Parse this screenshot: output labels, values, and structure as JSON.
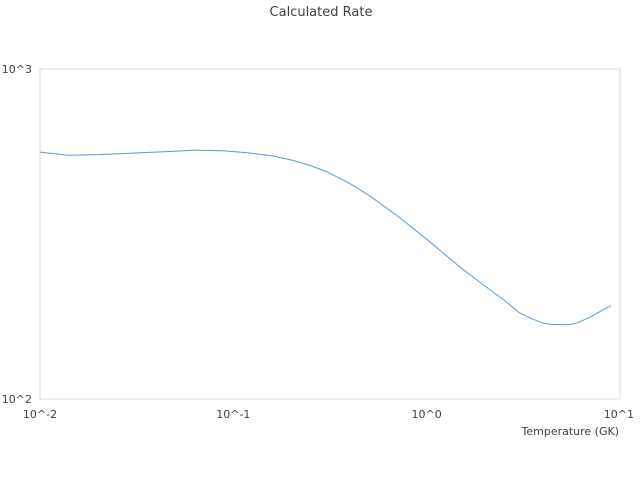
{
  "chart_data": {
    "type": "line",
    "title": "Calculated Rate",
    "xlabel": "Temperature (GK)",
    "ylabel": "",
    "x_scale": "log",
    "y_scale": "log",
    "xlim": [
      0.01,
      10
    ],
    "ylim": [
      100,
      1000
    ],
    "x_ticks": [
      {
        "value": 0.01,
        "label": "10^-2"
      },
      {
        "value": 0.1,
        "label": "10^-1"
      },
      {
        "value": 1,
        "label": "10^0"
      },
      {
        "value": 10,
        "label": "10^1"
      }
    ],
    "y_ticks": [
      {
        "value": 100,
        "label": "10^2"
      },
      {
        "value": 1000,
        "label": "10^3"
      }
    ],
    "grid": false,
    "legend": "none",
    "series": [
      {
        "color": "#5b9bd5",
        "x": [
          0.01,
          0.014,
          0.02,
          0.03,
          0.045,
          0.065,
          0.09,
          0.12,
          0.16,
          0.2,
          0.25,
          0.3,
          0.4,
          0.5,
          0.7,
          1.0,
          1.5,
          2.0,
          2.5,
          3.0,
          3.5,
          4.0,
          4.5,
          5.0,
          5.5,
          6.0,
          7.0,
          8.0,
          9.0
        ],
        "y": [
          560,
          548,
          550,
          556,
          562,
          568,
          565,
          557,
          545,
          530,
          510,
          490,
          450,
          415,
          360,
          305,
          250,
          220,
          200,
          183,
          175,
          170,
          168,
          168,
          168,
          170,
          177,
          185,
          192
        ]
      }
    ]
  }
}
